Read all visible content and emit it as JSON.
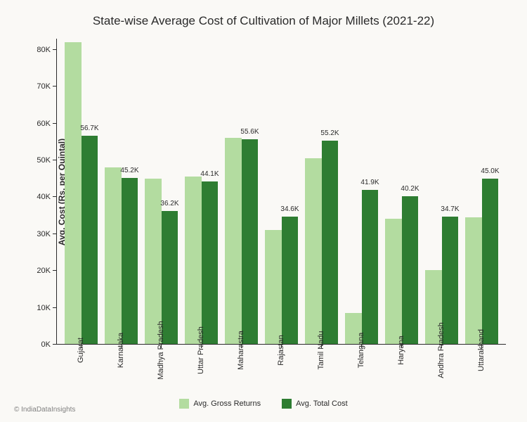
{
  "chart": {
    "type": "bar",
    "title": "State-wise  Average Cost of Cultivation of Major Millets (2021-22)",
    "title_fontsize": 17,
    "ylabel": "Avg. Cost (Rs. per Quintal)",
    "label_fontsize": 12,
    "background_color": "#faf9f6",
    "axis_color": "#2a2a2a",
    "yaxis": {
      "min": 0,
      "max": 83000,
      "ticks": [
        0,
        10000,
        20000,
        30000,
        40000,
        50000,
        60000,
        70000,
        80000
      ],
      "tick_labels": [
        "0K",
        "10K",
        "20K",
        "30K",
        "40K",
        "50K",
        "60K",
        "70K",
        "80K"
      ]
    },
    "series": [
      {
        "name": "Avg. Gross Returns",
        "color": "#b3dca0"
      },
      {
        "name": "Avg. Total Cost",
        "color": "#2e7d32"
      }
    ],
    "categories": [
      "Gujarat",
      "Karnataka",
      "Madhya Pradesh",
      "Uttar Pradesh",
      "Maharastra",
      "Rajastan",
      "Tamil Nadu",
      "Telangana",
      "Haryana",
      "Andhra Pradesh",
      "Uttarakhand"
    ],
    "data": {
      "gross_returns": [
        82000,
        48000,
        45000,
        45500,
        56000,
        31000,
        50500,
        8500,
        34000,
        20000,
        34500
      ],
      "total_cost": [
        56700,
        45200,
        36200,
        44100,
        55600,
        34600,
        55200,
        41900,
        40200,
        34700,
        45000
      ]
    },
    "cost_labels": [
      "56.7K",
      "45.2K",
      "36.2K",
      "44.1K",
      "55.6K",
      "34.6K",
      "55.2K",
      "41.9K",
      "40.2K",
      "34.7K",
      "45.0K"
    ],
    "bar_width_ratio": 0.42,
    "label_fontsize_small": 10
  },
  "copyright": "© IndiaDataInsights"
}
